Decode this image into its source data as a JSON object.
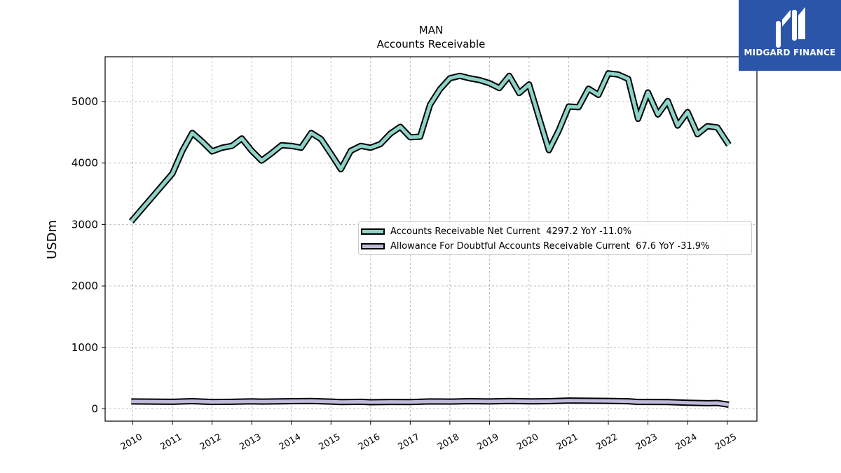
{
  "chart_data": {
    "type": "line",
    "title": "MAN",
    "subtitle": "Accounts Receivable",
    "ylabel": "USDm",
    "xlabel": "",
    "ylim": [
      -200,
      5730
    ],
    "xlim": [
      2009.3,
      2025.75
    ],
    "yticks": [
      0,
      1000,
      2000,
      3000,
      4000,
      5000
    ],
    "xticks": [
      "2010",
      "2011",
      "2012",
      "2013",
      "2014",
      "2015",
      "2016",
      "2017",
      "2018",
      "2019",
      "2020",
      "2021",
      "2022",
      "2023",
      "2024",
      "2025"
    ],
    "grid": true,
    "legend_position": "center-right",
    "series": [
      {
        "name": "Accounts Receivable Net Current",
        "legend_text": "Accounts Receivable Net Current  4297.2 YoY -11.0%",
        "color": "#8dd3c7",
        "x": [
          2009.96,
          2011.0,
          2011.25,
          2011.5,
          2011.75,
          2012.0,
          2012.25,
          2012.5,
          2012.75,
          2013.0,
          2013.25,
          2013.5,
          2013.75,
          2014.0,
          2014.25,
          2014.5,
          2014.75,
          2015.0,
          2015.25,
          2015.5,
          2015.75,
          2016.0,
          2016.25,
          2016.5,
          2016.75,
          2017.0,
          2017.25,
          2017.5,
          2017.75,
          2018.0,
          2018.25,
          2018.5,
          2018.75,
          2019.0,
          2019.25,
          2019.5,
          2019.75,
          2020.0,
          2020.25,
          2020.5,
          2020.75,
          2021.0,
          2021.25,
          2021.5,
          2021.75,
          2022.0,
          2022.25,
          2022.5,
          2022.75,
          2023.0,
          2023.25,
          2023.5,
          2023.75,
          2024.0,
          2024.25,
          2024.5,
          2024.75,
          2025.04
        ],
        "values": [
          3050,
          3830,
          4200,
          4490,
          4350,
          4190,
          4250,
          4280,
          4400,
          4200,
          4040,
          4160,
          4290,
          4280,
          4250,
          4490,
          4390,
          4150,
          3900,
          4200,
          4280,
          4250,
          4310,
          4480,
          4590,
          4420,
          4430,
          4950,
          5200,
          5380,
          5420,
          5380,
          5350,
          5300,
          5220,
          5420,
          5140,
          5280,
          4740,
          4210,
          4530,
          4920,
          4910,
          5210,
          5110,
          5460,
          5440,
          5370,
          4720,
          5150,
          4790,
          5010,
          4610,
          4830,
          4470,
          4600,
          4580,
          4297.2
        ]
      },
      {
        "name": "Allowance For Doubtful Accounts Receivable Current",
        "legend_text": "Allowance For Doubtful Accounts Receivable Current  67.6 YoY -31.9%",
        "color": "#bebada",
        "x": [
          2009.96,
          2011.0,
          2011.5,
          2012.0,
          2012.5,
          2013.0,
          2013.25,
          2013.75,
          2014.0,
          2014.5,
          2015.0,
          2015.25,
          2015.75,
          2016.0,
          2016.5,
          2017.0,
          2017.5,
          2018.0,
          2018.5,
          2019.0,
          2019.5,
          2020.0,
          2020.5,
          2021.0,
          2021.5,
          2022.0,
          2022.5,
          2022.75,
          2023.0,
          2023.5,
          2024.0,
          2024.5,
          2024.75,
          2025.04
        ],
        "values": [
          120,
          115,
          125,
          112,
          115,
          122,
          118,
          122,
          125,
          127,
          118,
          110,
          115,
          108,
          112,
          110,
          120,
          118,
          125,
          120,
          128,
          122,
          125,
          135,
          132,
          130,
          124,
          112,
          112,
          110,
          100,
          92,
          95,
          67.6
        ]
      }
    ]
  },
  "brand": {
    "name": "MIDGARD FINANCE",
    "color": "#2b55a8",
    "icon": "midgard-logo-icon"
  }
}
